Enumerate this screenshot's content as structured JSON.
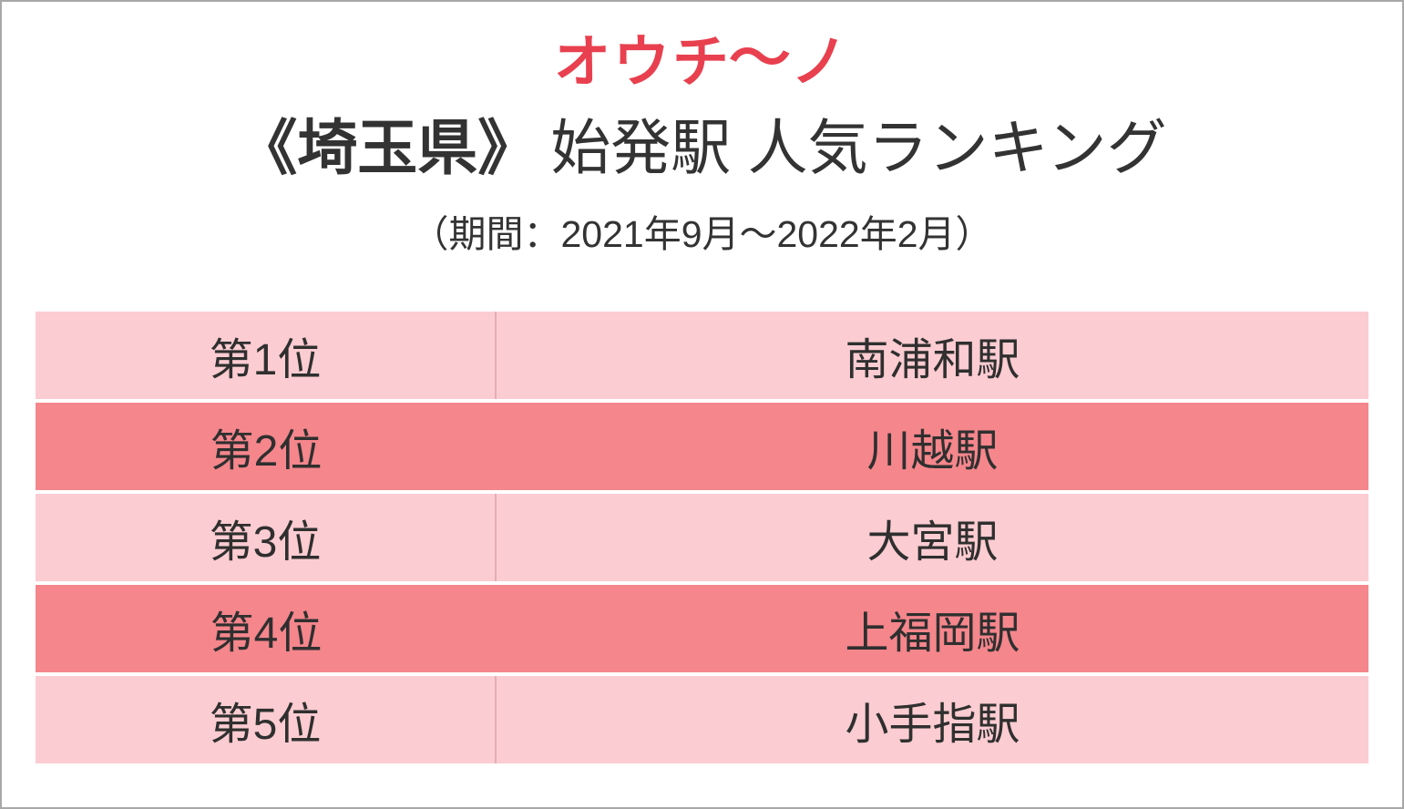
{
  "page": {
    "background_color": "#ffffff",
    "border_color": "#a8a8a8"
  },
  "logo": {
    "text_left": "オウチ",
    "wave": "〜",
    "text_right": "ノ",
    "brand_color": "#e8404f"
  },
  "title": {
    "prefix": "《埼玉県》",
    "rest": "始発駅 人気ランキング"
  },
  "subtitle": "（期間：2021年9月～2022年2月）",
  "colors": {
    "row_light": "#fbccd1",
    "row_dark": "#f4868c",
    "text": "#2f2f2f"
  },
  "chart_data": {
    "type": "table",
    "title": "《埼玉県》始発駅 人気ランキング",
    "subtitle": "（期間：2021年9月～2022年2月）",
    "rows": [
      {
        "rank": "第1位",
        "station": "南浦和駅"
      },
      {
        "rank": "第2位",
        "station": "川越駅"
      },
      {
        "rank": "第3位",
        "station": "大宮駅"
      },
      {
        "rank": "第4位",
        "station": "上福岡駅"
      },
      {
        "rank": "第5位",
        "station": "小手指駅"
      }
    ]
  }
}
